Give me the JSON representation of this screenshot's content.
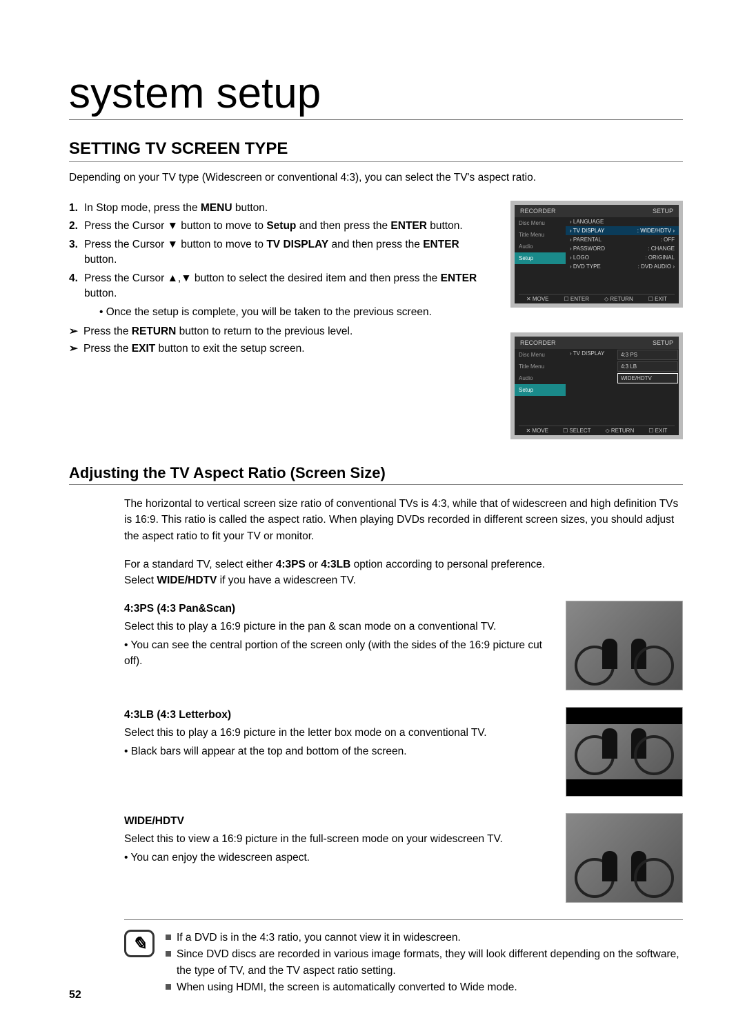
{
  "page_title": "system setup",
  "section_title": "SETTING TV SCREEN TYPE",
  "intro": "Depending on your TV type (Widescreen or conventional 4:3), you can select the TV's aspect ratio.",
  "steps": [
    {
      "num": "1.",
      "pre": "In Stop mode, press the ",
      "bold1": "MENU",
      "post": " button."
    },
    {
      "num": "2.",
      "pre": "Press the Cursor ▼ button to move to ",
      "bold1": "Setup",
      "mid": " and then press the ",
      "bold2": "ENTER",
      "post": " button."
    },
    {
      "num": "3.",
      "pre": "Press the Cursor ▼ button to move to ",
      "bold1": "TV DISPLAY",
      "mid": " and then press the ",
      "bold2": "ENTER",
      "post": " button."
    },
    {
      "num": "4.",
      "pre": "Press the Cursor ▲,▼ button to select the desired item and then press the ",
      "bold1": "ENTER",
      "post": " button."
    }
  ],
  "step4_sub": "Once the setup is complete, you will be taken to the previous screen.",
  "arrows": [
    {
      "pre": "Press the ",
      "bold": "RETURN",
      "post": " button to return to the previous level."
    },
    {
      "pre": "Press the ",
      "bold": "EXIT",
      "post": " button to exit the setup screen."
    }
  ],
  "osd1": {
    "hdr_left": "RECORDER",
    "hdr_right": "SETUP",
    "left": [
      "Disc Menu",
      "Title Menu",
      "Audio",
      "Setup"
    ],
    "left_hl_index": 3,
    "rows": [
      [
        "› LANGUAGE",
        "",
        false
      ],
      [
        "› TV DISPLAY",
        ": WIDE/HDTV ›",
        true
      ],
      [
        "› PARENTAL",
        ": OFF",
        false
      ],
      [
        "› PASSWORD",
        ": CHANGE",
        false
      ],
      [
        "› LOGO",
        ": ORIGINAL",
        false
      ],
      [
        "› DVD TYPE",
        ": DVD AUDIO ›",
        false
      ]
    ],
    "footer": [
      "✕ MOVE",
      "☐ ENTER",
      "◇ RETURN",
      "☐ EXIT"
    ]
  },
  "osd2": {
    "hdr_left": "RECORDER",
    "hdr_right": "SETUP",
    "left": [
      "Disc Menu",
      "Title Menu",
      "Audio",
      "Setup"
    ],
    "left_hl_index": 3,
    "mid_label": "› TV DISPLAY",
    "options": [
      "4:3 PS",
      "4:3 LB",
      "WIDE/HDTV"
    ],
    "sel_index": 2,
    "footer": [
      "✕ MOVE",
      "☐ SELECT",
      "◇ RETURN",
      "☐ EXIT"
    ]
  },
  "sub_title": "Adjusting the TV Aspect Ratio (Screen Size)",
  "para1": "The horizontal to vertical screen size ratio of conventional TVs is 4:3, while that of widescreen and high definition TVs is 16:9. This ratio is called the aspect ratio. When playing DVDs recorded in different screen sizes, you should adjust the aspect ratio to fit your TV or monitor.",
  "para2_pre": "For a standard TV, select either ",
  "para2_b1": "4:3PS",
  "para2_mid1": " or ",
  "para2_b2": "4:3LB",
  "para2_mid2": " option according to personal preference.",
  "para2_line2_pre": "Select ",
  "para2_line2_b": "WIDE/HDTV",
  "para2_line2_post": " if you have a widescreen TV.",
  "modes": [
    {
      "title": "4:3PS (4:3 Pan&Scan)",
      "desc": "Select this to play a 16:9 picture in the pan & scan mode on a conventional TV.",
      "bullet": "You can see the central portion of the screen only (with the sides of the 16:9 picture cut off).",
      "thumb_class": "thumb-ps"
    },
    {
      "title": "4:3LB (4:3 Letterbox)",
      "desc": "Select this to play a 16:9 picture in the letter box mode on a conventional TV.",
      "bullet": "Black bars will appear at the top and bottom of the screen.",
      "thumb_class": "thumb-lb"
    },
    {
      "title": "WIDE/HDTV",
      "desc": "Select this to view a 16:9 picture in the full-screen mode on your widescreen TV.",
      "bullet": "You can enjoy the widescreen aspect.",
      "thumb_class": "thumb-wide"
    }
  ],
  "notes": [
    "If a DVD is in the 4:3 ratio, you cannot view it in widescreen.",
    "Since DVD discs are recorded in various image formats, they will look different depending on the software, the type of TV, and the TV aspect ratio setting.",
    "When using HDMI, the screen is automatically converted to Wide mode."
  ],
  "page_num": "52"
}
